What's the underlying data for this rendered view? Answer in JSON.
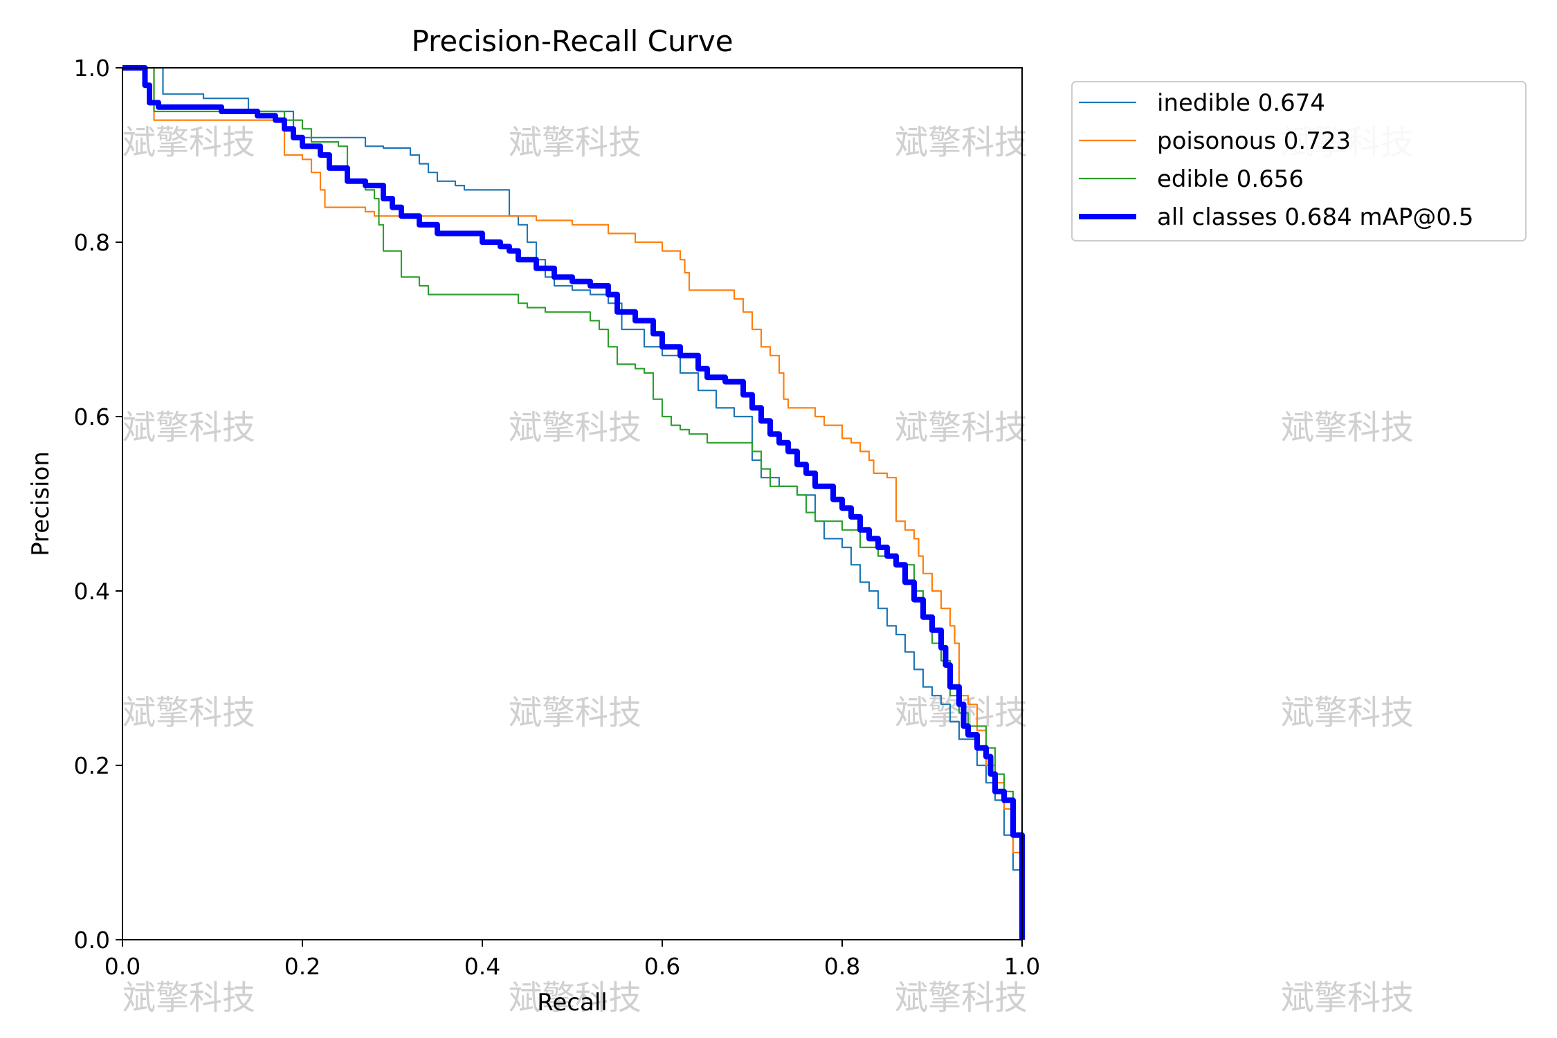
{
  "chart_data": {
    "type": "line",
    "title": "Precision-Recall Curve",
    "xlabel": "Recall",
    "ylabel": "Precision",
    "xlim": [
      0,
      1
    ],
    "ylim": [
      0,
      1
    ],
    "x_ticks": [
      "0.0",
      "0.2",
      "0.4",
      "0.6",
      "0.8",
      "1.0"
    ],
    "y_ticks": [
      "0.0",
      "0.2",
      "0.4",
      "0.6",
      "0.8",
      "1.0"
    ],
    "legend_position": "outside-top-right",
    "watermark_text": "斌擎科技",
    "series": [
      {
        "name": "inedible",
        "label": "inedible 0.674",
        "color": "#1f77b4",
        "points": [
          [
            0,
            1
          ],
          [
            0.03,
            1
          ],
          [
            0.045,
            1
          ],
          [
            0.045,
            0.97
          ],
          [
            0.09,
            0.97
          ],
          [
            0.09,
            0.965
          ],
          [
            0.14,
            0.965
          ],
          [
            0.14,
            0.95
          ],
          [
            0.19,
            0.95
          ],
          [
            0.19,
            0.92
          ],
          [
            0.27,
            0.91
          ],
          [
            0.29,
            0.908
          ],
          [
            0.32,
            0.9
          ],
          [
            0.33,
            0.89
          ],
          [
            0.34,
            0.88
          ],
          [
            0.35,
            0.87
          ],
          [
            0.37,
            0.865
          ],
          [
            0.38,
            0.86
          ],
          [
            0.42,
            0.86
          ],
          [
            0.43,
            0.84
          ],
          [
            0.43,
            0.83
          ],
          [
            0.44,
            0.82
          ],
          [
            0.45,
            0.8
          ],
          [
            0.46,
            0.78
          ],
          [
            0.47,
            0.76
          ],
          [
            0.48,
            0.75
          ],
          [
            0.5,
            0.745
          ],
          [
            0.52,
            0.74
          ],
          [
            0.54,
            0.73
          ],
          [
            0.555,
            0.7
          ],
          [
            0.58,
            0.68
          ],
          [
            0.6,
            0.67
          ],
          [
            0.62,
            0.65
          ],
          [
            0.64,
            0.63
          ],
          [
            0.66,
            0.61
          ],
          [
            0.68,
            0.6
          ],
          [
            0.7,
            0.57
          ],
          [
            0.7,
            0.55
          ],
          [
            0.71,
            0.53
          ],
          [
            0.73,
            0.52
          ],
          [
            0.75,
            0.51
          ],
          [
            0.77,
            0.48
          ],
          [
            0.78,
            0.46
          ],
          [
            0.8,
            0.45
          ],
          [
            0.81,
            0.43
          ],
          [
            0.82,
            0.41
          ],
          [
            0.83,
            0.4
          ],
          [
            0.84,
            0.38
          ],
          [
            0.85,
            0.36
          ],
          [
            0.86,
            0.35
          ],
          [
            0.87,
            0.33
          ],
          [
            0.88,
            0.31
          ],
          [
            0.89,
            0.29
          ],
          [
            0.9,
            0.28
          ],
          [
            0.91,
            0.27
          ],
          [
            0.92,
            0.25
          ],
          [
            0.93,
            0.23
          ],
          [
            0.95,
            0.2
          ],
          [
            0.96,
            0.18
          ],
          [
            0.97,
            0.16
          ],
          [
            0.98,
            0.12
          ],
          [
            0.99,
            0.08
          ],
          [
            1.0,
            0.0
          ]
        ]
      },
      {
        "name": "poisonous",
        "label": "poisonous 0.723",
        "color": "#ff7f0e",
        "points": [
          [
            0,
            1
          ],
          [
            0.03,
            1
          ],
          [
            0.035,
            0.94
          ],
          [
            0.1,
            0.94
          ],
          [
            0.15,
            0.94
          ],
          [
            0.18,
            0.935
          ],
          [
            0.18,
            0.9
          ],
          [
            0.2,
            0.895
          ],
          [
            0.21,
            0.88
          ],
          [
            0.22,
            0.86
          ],
          [
            0.225,
            0.84
          ],
          [
            0.27,
            0.835
          ],
          [
            0.28,
            0.83
          ],
          [
            0.42,
            0.83
          ],
          [
            0.46,
            0.825
          ],
          [
            0.5,
            0.82
          ],
          [
            0.53,
            0.82
          ],
          [
            0.54,
            0.81
          ],
          [
            0.57,
            0.8
          ],
          [
            0.6,
            0.79
          ],
          [
            0.62,
            0.78
          ],
          [
            0.625,
            0.765
          ],
          [
            0.63,
            0.745
          ],
          [
            0.66,
            0.745
          ],
          [
            0.68,
            0.735
          ],
          [
            0.69,
            0.72
          ],
          [
            0.7,
            0.7
          ],
          [
            0.71,
            0.68
          ],
          [
            0.72,
            0.67
          ],
          [
            0.73,
            0.65
          ],
          [
            0.735,
            0.62
          ],
          [
            0.74,
            0.61
          ],
          [
            0.76,
            0.61
          ],
          [
            0.77,
            0.6
          ],
          [
            0.78,
            0.59
          ],
          [
            0.8,
            0.575
          ],
          [
            0.81,
            0.57
          ],
          [
            0.82,
            0.56
          ],
          [
            0.83,
            0.55
          ],
          [
            0.835,
            0.535
          ],
          [
            0.85,
            0.53
          ],
          [
            0.86,
            0.52
          ],
          [
            0.86,
            0.48
          ],
          [
            0.87,
            0.47
          ],
          [
            0.88,
            0.46
          ],
          [
            0.885,
            0.44
          ],
          [
            0.89,
            0.42
          ],
          [
            0.9,
            0.4
          ],
          [
            0.91,
            0.38
          ],
          [
            0.92,
            0.36
          ],
          [
            0.925,
            0.34
          ],
          [
            0.93,
            0.31
          ],
          [
            0.93,
            0.28
          ],
          [
            0.94,
            0.27
          ],
          [
            0.95,
            0.24
          ],
          [
            0.96,
            0.2
          ],
          [
            0.97,
            0.18
          ],
          [
            0.98,
            0.15
          ],
          [
            0.99,
            0.1
          ],
          [
            1.0,
            0.0
          ]
        ]
      },
      {
        "name": "edible",
        "label": "edible 0.656",
        "color": "#2ca02c",
        "points": [
          [
            0,
            1
          ],
          [
            0.03,
            1
          ],
          [
            0.035,
            0.95
          ],
          [
            0.09,
            0.95
          ],
          [
            0.16,
            0.95
          ],
          [
            0.18,
            0.94
          ],
          [
            0.2,
            0.93
          ],
          [
            0.21,
            0.915
          ],
          [
            0.24,
            0.91
          ],
          [
            0.25,
            0.89
          ],
          [
            0.25,
            0.87
          ],
          [
            0.27,
            0.86
          ],
          [
            0.28,
            0.85
          ],
          [
            0.285,
            0.82
          ],
          [
            0.29,
            0.79
          ],
          [
            0.3,
            0.79
          ],
          [
            0.31,
            0.76
          ],
          [
            0.33,
            0.75
          ],
          [
            0.34,
            0.74
          ],
          [
            0.44,
            0.73
          ],
          [
            0.45,
            0.725
          ],
          [
            0.47,
            0.72
          ],
          [
            0.5,
            0.72
          ],
          [
            0.52,
            0.71
          ],
          [
            0.53,
            0.7
          ],
          [
            0.54,
            0.68
          ],
          [
            0.55,
            0.66
          ],
          [
            0.57,
            0.655
          ],
          [
            0.58,
            0.65
          ],
          [
            0.59,
            0.62
          ],
          [
            0.6,
            0.6
          ],
          [
            0.61,
            0.59
          ],
          [
            0.62,
            0.585
          ],
          [
            0.63,
            0.58
          ],
          [
            0.65,
            0.57
          ],
          [
            0.69,
            0.57
          ],
          [
            0.7,
            0.56
          ],
          [
            0.71,
            0.54
          ],
          [
            0.72,
            0.52
          ],
          [
            0.75,
            0.51
          ],
          [
            0.76,
            0.49
          ],
          [
            0.77,
            0.48
          ],
          [
            0.8,
            0.47
          ],
          [
            0.82,
            0.45
          ],
          [
            0.84,
            0.44
          ],
          [
            0.86,
            0.43
          ],
          [
            0.88,
            0.4
          ],
          [
            0.89,
            0.37
          ],
          [
            0.9,
            0.34
          ],
          [
            0.91,
            0.32
          ],
          [
            0.92,
            0.28
          ],
          [
            0.93,
            0.26
          ],
          [
            0.94,
            0.245
          ],
          [
            0.96,
            0.22
          ],
          [
            0.97,
            0.19
          ],
          [
            0.98,
            0.17
          ],
          [
            0.99,
            0.12
          ],
          [
            1.0,
            0.0
          ]
        ]
      },
      {
        "name": "all classes",
        "label": "all classes 0.684 mAP@0.5",
        "color": "#0000ff",
        "thick": true,
        "points": [
          [
            0,
            1
          ],
          [
            0.02,
            1
          ],
          [
            0.025,
            0.98
          ],
          [
            0.03,
            0.96
          ],
          [
            0.04,
            0.955
          ],
          [
            0.1,
            0.955
          ],
          [
            0.11,
            0.95
          ],
          [
            0.14,
            0.95
          ],
          [
            0.15,
            0.945
          ],
          [
            0.17,
            0.94
          ],
          [
            0.18,
            0.93
          ],
          [
            0.19,
            0.92
          ],
          [
            0.2,
            0.91
          ],
          [
            0.22,
            0.9
          ],
          [
            0.23,
            0.885
          ],
          [
            0.25,
            0.87
          ],
          [
            0.27,
            0.865
          ],
          [
            0.29,
            0.85
          ],
          [
            0.3,
            0.84
          ],
          [
            0.31,
            0.83
          ],
          [
            0.33,
            0.82
          ],
          [
            0.35,
            0.81
          ],
          [
            0.38,
            0.81
          ],
          [
            0.4,
            0.8
          ],
          [
            0.42,
            0.795
          ],
          [
            0.43,
            0.79
          ],
          [
            0.44,
            0.78
          ],
          [
            0.46,
            0.77
          ],
          [
            0.48,
            0.76
          ],
          [
            0.5,
            0.755
          ],
          [
            0.52,
            0.75
          ],
          [
            0.54,
            0.74
          ],
          [
            0.55,
            0.72
          ],
          [
            0.57,
            0.71
          ],
          [
            0.59,
            0.695
          ],
          [
            0.6,
            0.68
          ],
          [
            0.62,
            0.67
          ],
          [
            0.64,
            0.655
          ],
          [
            0.65,
            0.645
          ],
          [
            0.67,
            0.64
          ],
          [
            0.69,
            0.625
          ],
          [
            0.7,
            0.61
          ],
          [
            0.71,
            0.595
          ],
          [
            0.72,
            0.58
          ],
          [
            0.73,
            0.57
          ],
          [
            0.74,
            0.56
          ],
          [
            0.75,
            0.545
          ],
          [
            0.76,
            0.535
          ],
          [
            0.77,
            0.52
          ],
          [
            0.79,
            0.505
          ],
          [
            0.8,
            0.495
          ],
          [
            0.81,
            0.485
          ],
          [
            0.82,
            0.47
          ],
          [
            0.83,
            0.46
          ],
          [
            0.84,
            0.45
          ],
          [
            0.85,
            0.44
          ],
          [
            0.86,
            0.43
          ],
          [
            0.87,
            0.41
          ],
          [
            0.88,
            0.39
          ],
          [
            0.89,
            0.37
          ],
          [
            0.9,
            0.355
          ],
          [
            0.91,
            0.335
          ],
          [
            0.915,
            0.315
          ],
          [
            0.92,
            0.29
          ],
          [
            0.93,
            0.27
          ],
          [
            0.935,
            0.245
          ],
          [
            0.94,
            0.235
          ],
          [
            0.95,
            0.22
          ],
          [
            0.96,
            0.21
          ],
          [
            0.965,
            0.19
          ],
          [
            0.97,
            0.17
          ],
          [
            0.98,
            0.16
          ],
          [
            0.99,
            0.12
          ],
          [
            1.0,
            0.0
          ]
        ]
      }
    ]
  }
}
